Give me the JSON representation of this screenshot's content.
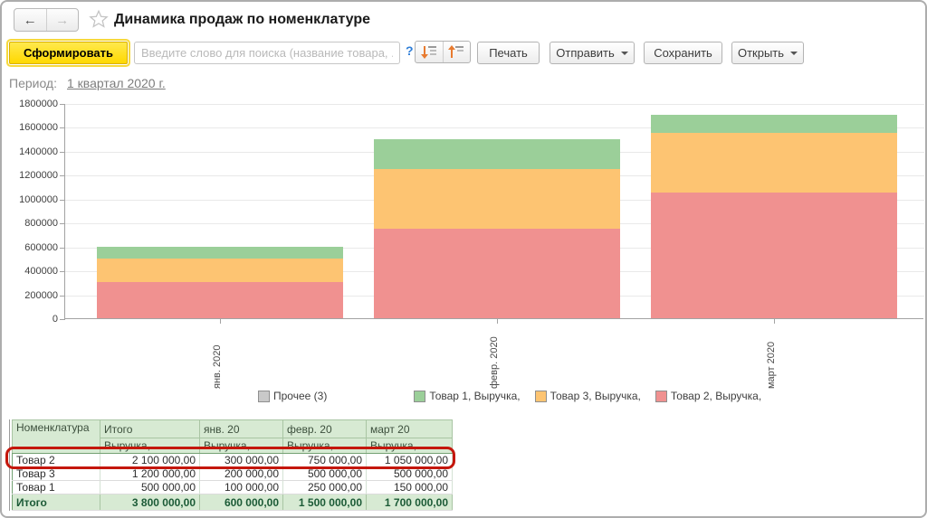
{
  "window": {
    "title": "Динамика продаж по номенклатуре"
  },
  "toolbar": {
    "generate_label": "Сформировать",
    "search_placeholder": "Введите слово для поиска (название товара, ...",
    "help_label": "?",
    "print_label": "Печать",
    "send_label": "Отправить",
    "save_label": "Сохранить",
    "open_label": "Открыть"
  },
  "period": {
    "label": "Период:",
    "value": "1 квартал 2020 г."
  },
  "chart_data": {
    "type": "bar",
    "stacked": true,
    "title": "",
    "xlabel": "",
    "ylabel": "",
    "categories": [
      "янв. 2020",
      "февр. 2020",
      "март 2020"
    ],
    "series": [
      {
        "name": "Товар 2, Выручка,",
        "color": "#f09190",
        "values": [
          300000,
          750000,
          1050000
        ]
      },
      {
        "name": "Товар 3, Выручка,",
        "color": "#fdc472",
        "values": [
          200000,
          500000,
          500000
        ]
      },
      {
        "name": "Товар 1, Выручка,",
        "color": "#9bcf99",
        "values": [
          100000,
          250000,
          150000
        ]
      }
    ],
    "legend": [
      {
        "label": "Прочее (3)",
        "color": "#c9c9c9"
      },
      {
        "label": "Товар 1, Выручка,",
        "color": "#9bcf99"
      },
      {
        "label": "Товар 3, Выручка,",
        "color": "#fdc472"
      },
      {
        "label": "Товар 2, Выручка,",
        "color": "#f09190"
      }
    ],
    "ylim": [
      0,
      1800000
    ],
    "yticks": [
      0,
      200000,
      400000,
      600000,
      800000,
      1000000,
      1200000,
      1400000,
      1600000,
      1800000
    ],
    "legend_position": "bottom",
    "grid": true
  },
  "table": {
    "columns": [
      "Номенклатура",
      "Итого",
      "янв. 20",
      "февр. 20",
      "март 20"
    ],
    "subheader_label": "Выручка,",
    "rows": [
      {
        "name": "Товар 2",
        "values": [
          "2 100 000,00",
          "300 000,00",
          "750 000,00",
          "1 050 000,00"
        ],
        "highlighted": true
      },
      {
        "name": "Товар 3",
        "values": [
          "1 200 000,00",
          "200 000,00",
          "500 000,00",
          "500 000,00"
        ],
        "highlighted": false
      },
      {
        "name": "Товар 1",
        "values": [
          "500 000,00",
          "100 000,00",
          "250 000,00",
          "150 000,00"
        ],
        "highlighted": false
      }
    ],
    "total_row": {
      "name": "Итого",
      "values": [
        "3 800 000,00",
        "600 000,00",
        "1 500 000,00",
        "1 700 000,00"
      ]
    }
  },
  "annotation": {
    "type": "highlight-box",
    "target": "Товар 2 row",
    "color": "#c4170c"
  }
}
